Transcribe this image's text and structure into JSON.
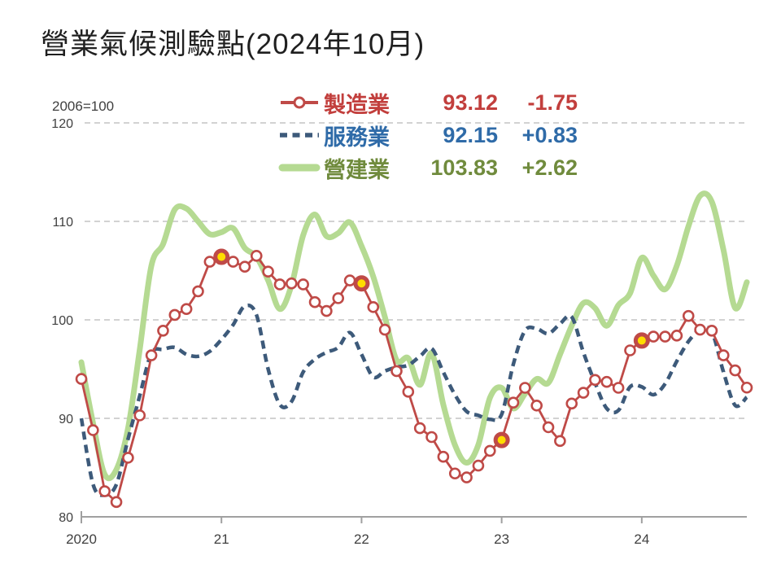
{
  "title": "營業氣候測驗點(2024年10月)",
  "chart_data": {
    "type": "line",
    "title": "營業氣候測驗點(2024年10月)",
    "baseline_note": "2006=100",
    "legend_position": "top-center",
    "grid": "horizontal-dashed",
    "x": {
      "months": 58,
      "start": "2020-01",
      "end": "2024-10",
      "tick_labels": [
        "2020",
        "21",
        "22",
        "23",
        "24"
      ],
      "tick_month_index": [
        0,
        12,
        24,
        36,
        48
      ]
    },
    "y": {
      "min": 80,
      "max": 120,
      "ticks": [
        80,
        90,
        100,
        110,
        120
      ]
    },
    "highlight_month_index": [
      12,
      24,
      36,
      48
    ],
    "highlight_fill": "#ffdd00",
    "axis_color": "#a0a0a0",
    "gridline_color": "#c3c3c3",
    "axis_text_color": "#404040",
    "series": [
      {
        "id": "manufacturing",
        "label": "製造業",
        "latest_value": "93.12",
        "delta": "-1.75",
        "style": "solid_with_circle_markers",
        "color": "#bf4a47",
        "text_color": "#c23f3d",
        "values": [
          94.0,
          88.8,
          82.6,
          81.5,
          86.0,
          90.3,
          96.4,
          98.9,
          100.5,
          101.1,
          102.9,
          105.9,
          106.4,
          105.9,
          105.4,
          106.5,
          104.9,
          103.6,
          103.7,
          103.6,
          101.8,
          100.9,
          102.2,
          104.0,
          103.7,
          101.3,
          99.0,
          94.8,
          92.7,
          89.0,
          88.1,
          86.1,
          84.4,
          84.0,
          85.2,
          86.7,
          87.8,
          91.6,
          93.1,
          91.3,
          89.1,
          87.7,
          91.5,
          92.6,
          93.9,
          93.7,
          93.1,
          96.9,
          97.9,
          98.3,
          98.3,
          98.4,
          100.4,
          99.0,
          98.9,
          96.4,
          94.87,
          93.12
        ]
      },
      {
        "id": "services",
        "label": "服務業",
        "latest_value": "92.15",
        "delta": "+0.83",
        "style": "dashed",
        "color": "#3d5a7a",
        "text_color": "#2f6ba8",
        "values": [
          90.0,
          83.3,
          82.2,
          83.3,
          87.9,
          92.3,
          96.6,
          97.0,
          97.2,
          96.5,
          96.3,
          96.8,
          98.0,
          99.5,
          101.4,
          100.5,
          95.0,
          91.4,
          91.7,
          94.7,
          96.0,
          96.7,
          97.2,
          98.7,
          96.5,
          94.2,
          94.8,
          95.2,
          95.4,
          96.3,
          97.1,
          94.7,
          92.4,
          90.7,
          90.3,
          89.9,
          90.4,
          95.5,
          98.9,
          99.1,
          98.6,
          99.6,
          100.3,
          96.7,
          93.6,
          91.0,
          90.8,
          93.2,
          93.2,
          92.4,
          93.5,
          95.8,
          97.8,
          99.0,
          98.8,
          94.7,
          91.32,
          92.15
        ]
      },
      {
        "id": "construction",
        "label": "營建業",
        "latest_value": "103.83",
        "delta": "+2.62",
        "style": "thick_smooth",
        "color": "#b5da92",
        "text_color": "#708b3d",
        "values": [
          95.7,
          89.5,
          84.3,
          84.8,
          89.0,
          97.0,
          105.5,
          107.7,
          111.2,
          111.3,
          110.0,
          108.7,
          108.9,
          109.3,
          107.3,
          106.4,
          104.0,
          101.1,
          103.5,
          108.6,
          110.7,
          108.5,
          108.8,
          109.9,
          107.5,
          104.4,
          100.3,
          95.9,
          96.1,
          93.4,
          96.6,
          91.4,
          87.3,
          85.5,
          87.3,
          92.1,
          93.1,
          91.0,
          92.5,
          94.0,
          93.6,
          96.5,
          99.4,
          101.7,
          101.2,
          99.4,
          101.5,
          102.7,
          106.3,
          104.5,
          103.1,
          105.5,
          109.5,
          112.6,
          112.0,
          107.1,
          101.21,
          103.83
        ]
      }
    ]
  }
}
